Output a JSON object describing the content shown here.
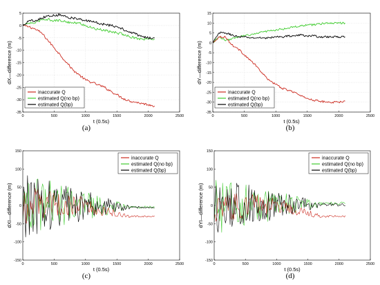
{
  "colors": {
    "inaccurate": "#cc2a1f",
    "nobp": "#3fcc2e",
    "bp": "#000000"
  },
  "chart_data": [
    {
      "type": "line",
      "caption": "(a)",
      "xlabel": "t (0.5s)",
      "ylabel": "dX—difference (m)",
      "xlim": [
        0,
        2500
      ],
      "ylim": [
        -35,
        5
      ],
      "xticks": [
        "0",
        "500",
        "1000",
        "1500",
        "2000",
        "2500"
      ],
      "yticks": [
        "5",
        "0",
        "-5",
        "-10",
        "-15",
        "-20",
        "-25",
        "-30",
        "-35"
      ],
      "grid": true,
      "legend_position": "bottom-left",
      "x": [
        0,
        100,
        200,
        300,
        400,
        500,
        600,
        700,
        800,
        900,
        1000,
        1100,
        1200,
        1300,
        1400,
        1500,
        1600,
        1700,
        1800,
        1900,
        2000,
        2100
      ],
      "series": [
        {
          "name": "inaccurate Q",
          "values": [
            0,
            -0.5,
            -1.5,
            -3,
            -6,
            -9,
            -12,
            -15,
            -18,
            -20,
            -22,
            -23,
            -24,
            -25,
            -26.5,
            -28,
            -29.5,
            -30.5,
            -31,
            -31.5,
            -32,
            -32.5
          ]
        },
        {
          "name": "estimated Q(no bp)",
          "values": [
            0,
            1,
            1,
            2.5,
            2.5,
            2,
            2,
            1.5,
            1,
            1,
            0,
            -1,
            -1.5,
            -2,
            -2.5,
            -3,
            -3.5,
            -4.5,
            -5,
            -5.5,
            -5.5,
            -5.5
          ]
        },
        {
          "name": "estimated Q(bp)",
          "values": [
            0,
            2,
            2,
            3,
            4,
            4,
            4.5,
            3.5,
            3,
            2.5,
            2,
            1.5,
            1,
            0.5,
            0,
            -0.5,
            -1.5,
            -2.5,
            -3.5,
            -4.5,
            -5,
            -5
          ]
        }
      ]
    },
    {
      "type": "line",
      "caption": "(b)",
      "xlabel": "t (0.5s)",
      "ylabel": "dY—difference (m)",
      "xlim": [
        0,
        2500
      ],
      "ylim": [
        -35,
        15
      ],
      "xticks": [
        "0",
        "500",
        "1000",
        "1500",
        "2000",
        "2500"
      ],
      "yticks": [
        "15",
        "10",
        "5",
        "0",
        "-5",
        "-10",
        "-15",
        "-20",
        "-25",
        "-30",
        "-35"
      ],
      "grid": true,
      "legend_position": "bottom-left",
      "x": [
        0,
        100,
        200,
        300,
        400,
        500,
        600,
        700,
        800,
        900,
        1000,
        1100,
        1200,
        1300,
        1400,
        1500,
        1600,
        1700,
        1800,
        1900,
        2000,
        2100
      ],
      "series": [
        {
          "name": "inaccurate Q",
          "values": [
            0,
            3,
            3,
            -1,
            -3,
            -6,
            -9,
            -12,
            -16,
            -19,
            -21,
            -23,
            -24,
            -25,
            -27,
            -28,
            -29,
            -29.5,
            -30,
            -30,
            -30,
            -29.5
          ]
        },
        {
          "name": "estimated Q(no bp)",
          "values": [
            0,
            3,
            1,
            2,
            3,
            3.5,
            4,
            5,
            5.5,
            6,
            6.5,
            7,
            7.5,
            8,
            8.5,
            9,
            9,
            9.5,
            10,
            10,
            10,
            10
          ]
        },
        {
          "name": "estimated Q(bp)",
          "values": [
            0,
            5,
            5,
            4,
            3,
            3,
            2.5,
            2.5,
            2.5,
            2.5,
            3,
            3,
            3.5,
            3.5,
            4,
            3.5,
            3.5,
            3,
            3,
            3,
            3,
            3
          ]
        }
      ]
    },
    {
      "type": "line",
      "caption": "(c)",
      "xlabel": "t (0.5s)",
      "ylabel": "dXI—difference (m)",
      "xlim": [
        0,
        2500
      ],
      "ylim": [
        -150,
        150
      ],
      "xticks": [
        "0",
        "500",
        "1000",
        "1500",
        "2000",
        "2500"
      ],
      "yticks": [
        "150",
        "100",
        "50",
        "0",
        "-50",
        "-100",
        "-150"
      ],
      "grid": false,
      "legend_position": "top-right",
      "noise": {
        "samples": 140,
        "x_end": 2100,
        "amp_start": 90,
        "amp_end": 6,
        "noise_end_x": 1700,
        "end_offset_inaccurate": -30,
        "end_offset_nobp": -5,
        "end_offset_bp": -5
      },
      "series": [
        {
          "name": "inaccurate Q"
        },
        {
          "name": "estimated Q(no bp)"
        },
        {
          "name": "estimated Q(bp)"
        }
      ]
    },
    {
      "type": "line",
      "caption": "(d)",
      "xlabel": "t (0.5s)",
      "ylabel": "dYI—difference (m)",
      "xlim": [
        0,
        2500
      ],
      "ylim": [
        -150,
        150
      ],
      "xticks": [
        "0",
        "500",
        "1000",
        "1500",
        "2000",
        "2500"
      ],
      "yticks": [
        "150",
        "100",
        "50",
        "0",
        "-50",
        "-100",
        "-150"
      ],
      "grid": false,
      "legend_position": "top-right",
      "noise": {
        "samples": 140,
        "x_end": 2100,
        "amp_start": 80,
        "amp_end": 8,
        "noise_end_x": 1700,
        "end_offset_inaccurate": -30,
        "end_offset_nobp": 5,
        "end_offset_bp": 3
      },
      "series": [
        {
          "name": "inaccurate Q"
        },
        {
          "name": "estimated Q(no bp)"
        },
        {
          "name": "estimated Q(bp)"
        }
      ]
    }
  ]
}
